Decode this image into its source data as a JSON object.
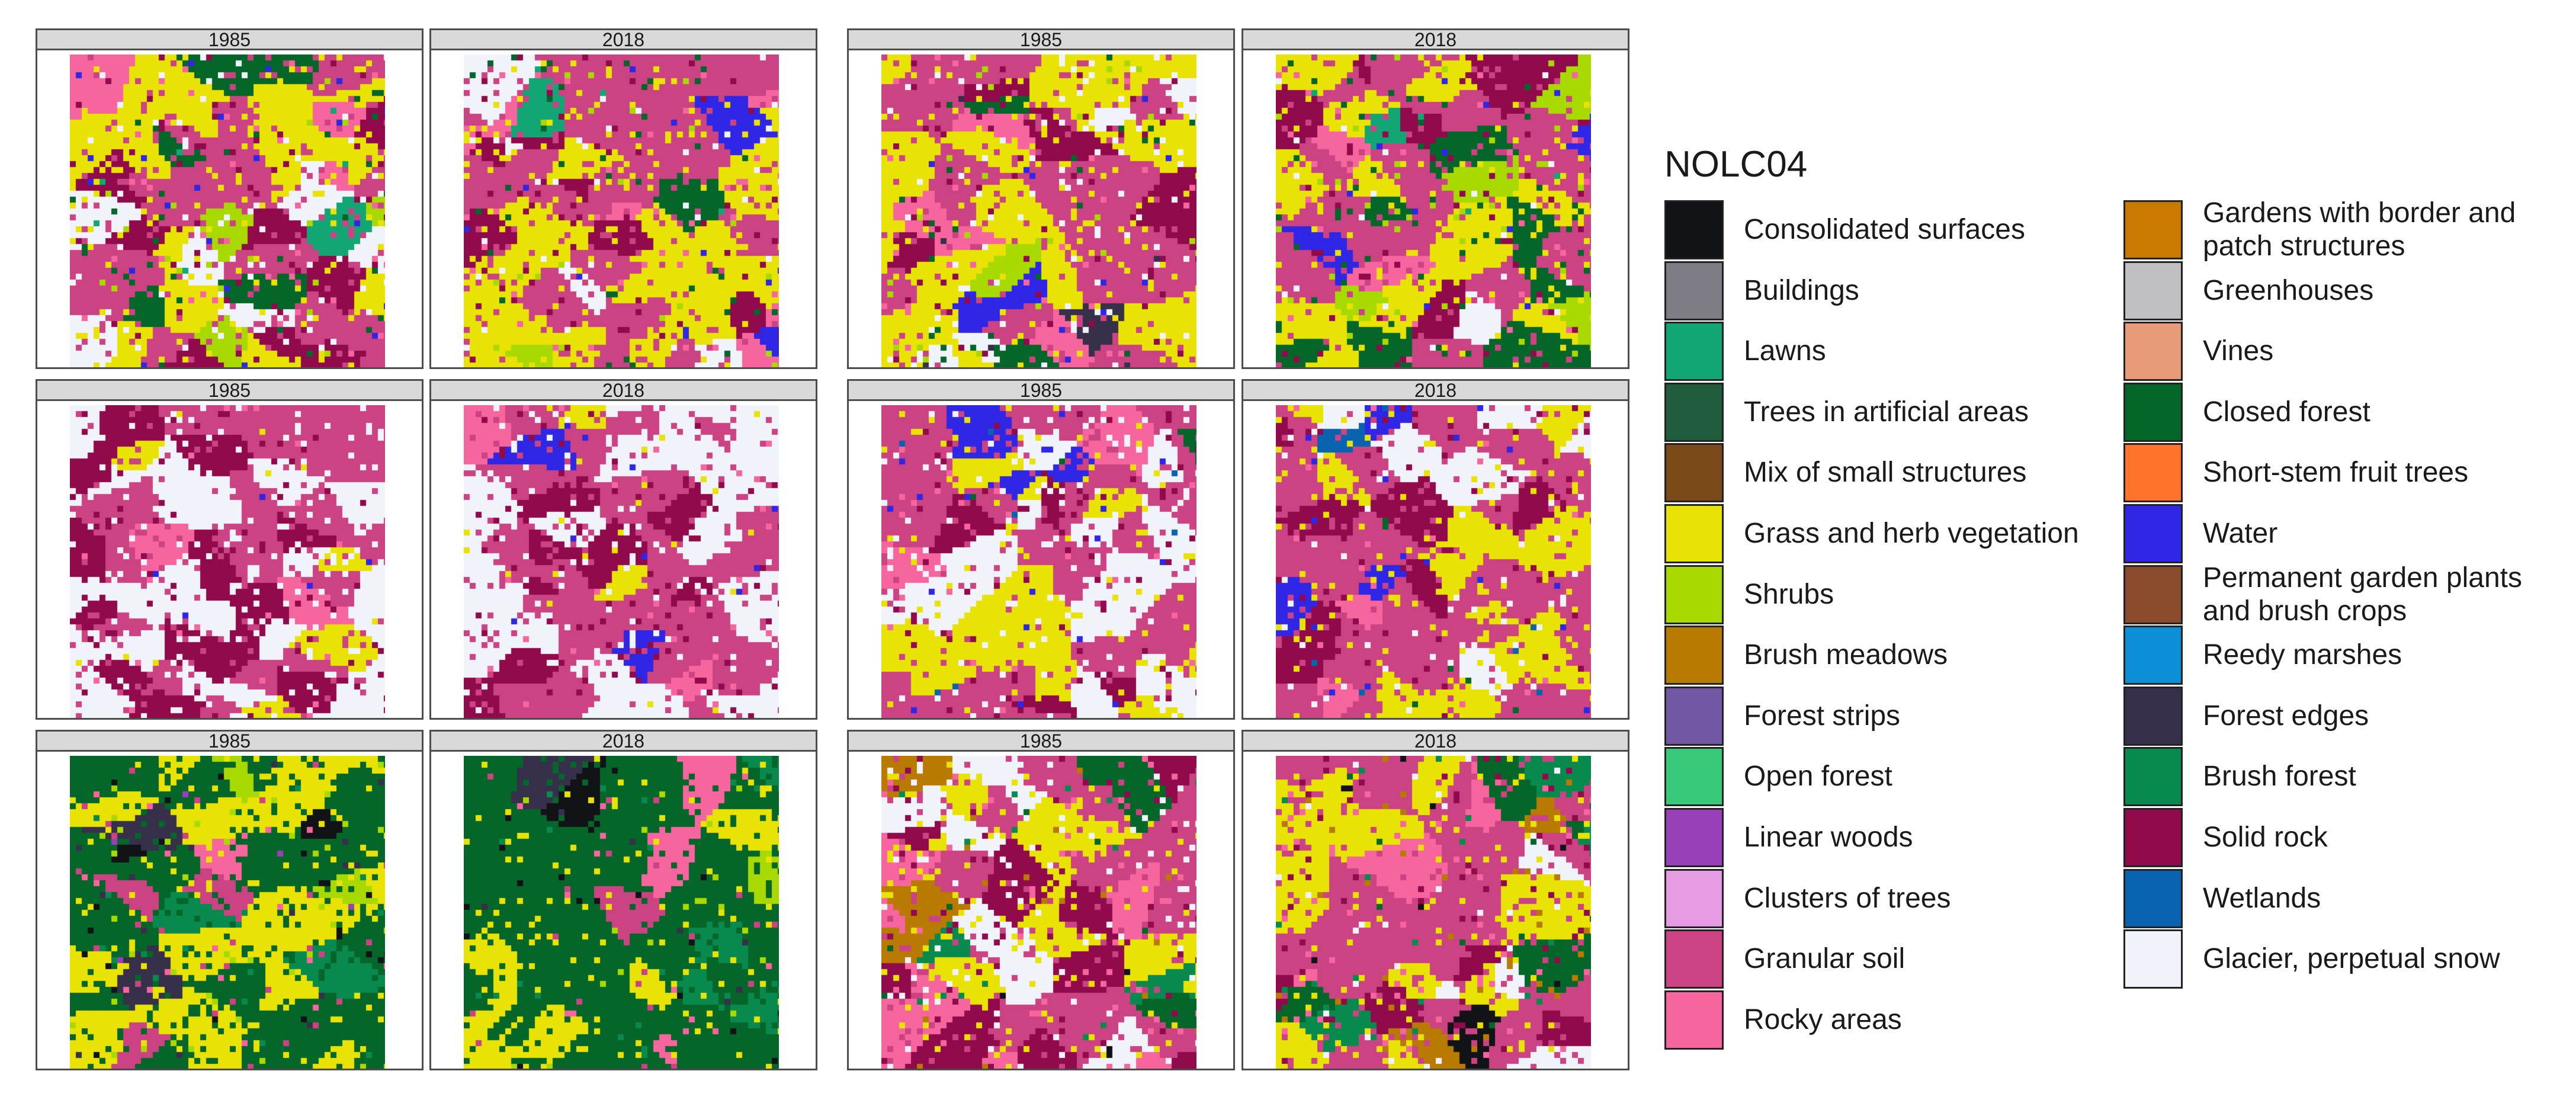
{
  "panels": [
    {
      "strip": "1985",
      "mix": {
        "glacier": 0.14,
        "granular": 0.32,
        "grass": 0.26,
        "rock": 0.12,
        "rocky": 0.06,
        "closed": 0.04,
        "shrubs": 0.03,
        "water": 0.015,
        "lawns": 0.015
      }
    },
    {
      "strip": "2018",
      "mix": {
        "glacier": 0.08,
        "granular": 0.38,
        "grass": 0.24,
        "rock": 0.12,
        "rocky": 0.06,
        "closed": 0.06,
        "shrubs": 0.03,
        "water": 0.02,
        "lawns": 0.01
      }
    },
    {
      "strip": "1985",
      "mix": {
        "glacier": 0.14,
        "granular": 0.26,
        "grass": 0.28,
        "rock": 0.14,
        "rocky": 0.05,
        "closed": 0.06,
        "shrubs": 0.04,
        "water": 0.02,
        "forestedges": 0.01
      }
    },
    {
      "strip": "2018",
      "mix": {
        "glacier": 0.04,
        "granular": 0.34,
        "grass": 0.26,
        "rock": 0.12,
        "rocky": 0.05,
        "closed": 0.11,
        "shrubs": 0.05,
        "water": 0.02,
        "lawns": 0.01
      }
    },
    {
      "strip": "1985",
      "mix": {
        "glacier": 0.42,
        "granular": 0.32,
        "rock": 0.18,
        "grass": 0.04,
        "rocky": 0.03,
        "water": 0.01
      }
    },
    {
      "strip": "2018",
      "mix": {
        "glacier": 0.3,
        "granular": 0.42,
        "rock": 0.18,
        "grass": 0.05,
        "rocky": 0.04,
        "water": 0.01
      }
    },
    {
      "strip": "1985",
      "mix": {
        "glacier": 0.24,
        "granular": 0.34,
        "grass": 0.22,
        "rock": 0.12,
        "rocky": 0.04,
        "water": 0.02,
        "wetlands": 0.01,
        "closed": 0.01
      }
    },
    {
      "strip": "2018",
      "mix": {
        "glacier": 0.1,
        "granular": 0.42,
        "grass": 0.26,
        "rock": 0.12,
        "rocky": 0.05,
        "water": 0.03,
        "wetlands": 0.01,
        "closed": 0.01
      }
    },
    {
      "strip": "1985",
      "mix": {
        "closed": 0.52,
        "grass": 0.24,
        "shrubs": 0.08,
        "granular": 0.05,
        "rocky": 0.03,
        "consolidated": 0.02,
        "brushforest": 0.03,
        "forestedges": 0.02,
        "linear": 0.01
      }
    },
    {
      "strip": "2018",
      "mix": {
        "closed": 0.62,
        "grass": 0.2,
        "shrubs": 0.04,
        "granular": 0.03,
        "rocky": 0.03,
        "consolidated": 0.03,
        "brushforest": 0.03,
        "forestedges": 0.02
      }
    },
    {
      "strip": "1985",
      "mix": {
        "glacier": 0.16,
        "granular": 0.34,
        "grass": 0.22,
        "rock": 0.12,
        "rocky": 0.08,
        "brushmeadows": 0.03,
        "brushforest": 0.02,
        "consolidated": 0.01,
        "closed": 0.02
      }
    },
    {
      "strip": "2018",
      "mix": {
        "glacier": 0.06,
        "granular": 0.4,
        "grass": 0.22,
        "rock": 0.14,
        "rocky": 0.08,
        "brushmeadows": 0.04,
        "brushforest": 0.03,
        "consolidated": 0.01,
        "closed": 0.02
      }
    }
  ],
  "legend": {
    "title": "NOLC04",
    "items": [
      {
        "key": "consolidated",
        "label": "Consolidated surfaces",
        "color": "#111317"
      },
      {
        "key": "buildings",
        "label": "Buildings",
        "color": "#7e7d85"
      },
      {
        "key": "lawns",
        "label": "Lawns",
        "color": "#12a674"
      },
      {
        "key": "treesartificial",
        "label": "Trees in artificial areas",
        "color": "#1f5c3c"
      },
      {
        "key": "mixsmall",
        "label": "Mix of small structures",
        "color": "#7a4a18"
      },
      {
        "key": "grass",
        "label": "Grass and herb vegetation",
        "color": "#e8e205"
      },
      {
        "key": "shrubs",
        "label": "Shrubs",
        "color": "#a8d900"
      },
      {
        "key": "brushmeadows",
        "label": "Brush meadows",
        "color": "#b87a00"
      },
      {
        "key": "foreststrips",
        "label": "Forest strips",
        "color": "#7257a6"
      },
      {
        "key": "openforest",
        "label": "Open forest",
        "color": "#38c97a"
      },
      {
        "key": "linear",
        "label": "Linear woods",
        "color": "#9a3fba"
      },
      {
        "key": "clusters",
        "label": "Clusters of trees",
        "color": "#e59be3"
      },
      {
        "key": "granular",
        "label": "Granular soil",
        "color": "#cc4383"
      },
      {
        "key": "rocky",
        "label": "Rocky areas",
        "color": "#f7659f"
      },
      {
        "key": "gardens",
        "label": "Gardens with border and\npatch structures",
        "color": "#c97b00"
      },
      {
        "key": "greenhouses",
        "label": "Greenhouses",
        "color": "#c0bfc2"
      },
      {
        "key": "vines",
        "label": "Vines",
        "color": "#e89b78"
      },
      {
        "key": "closed",
        "label": "Closed forest",
        "color": "#05662a"
      },
      {
        "key": "shortstem",
        "label": "Short-stem fruit trees",
        "color": "#ff732a"
      },
      {
        "key": "water",
        "label": "Water",
        "color": "#2f26e6"
      },
      {
        "key": "permanent",
        "label": "Permanent garden plants\nand brush crops",
        "color": "#8a4a2c"
      },
      {
        "key": "reedy",
        "label": "Reedy marshes",
        "color": "#0b8fd6"
      },
      {
        "key": "forestedges",
        "label": "Forest edges",
        "color": "#37304a"
      },
      {
        "key": "brushforest",
        "label": "Brush forest",
        "color": "#088a4f"
      },
      {
        "key": "rock",
        "label": "Solid rock",
        "color": "#900a4c"
      },
      {
        "key": "wetlands",
        "label": "Wetlands",
        "color": "#0a63ae"
      },
      {
        "key": "glacier",
        "label": "Glacier, perpetual snow",
        "color": "#f1f3fb"
      }
    ]
  }
}
